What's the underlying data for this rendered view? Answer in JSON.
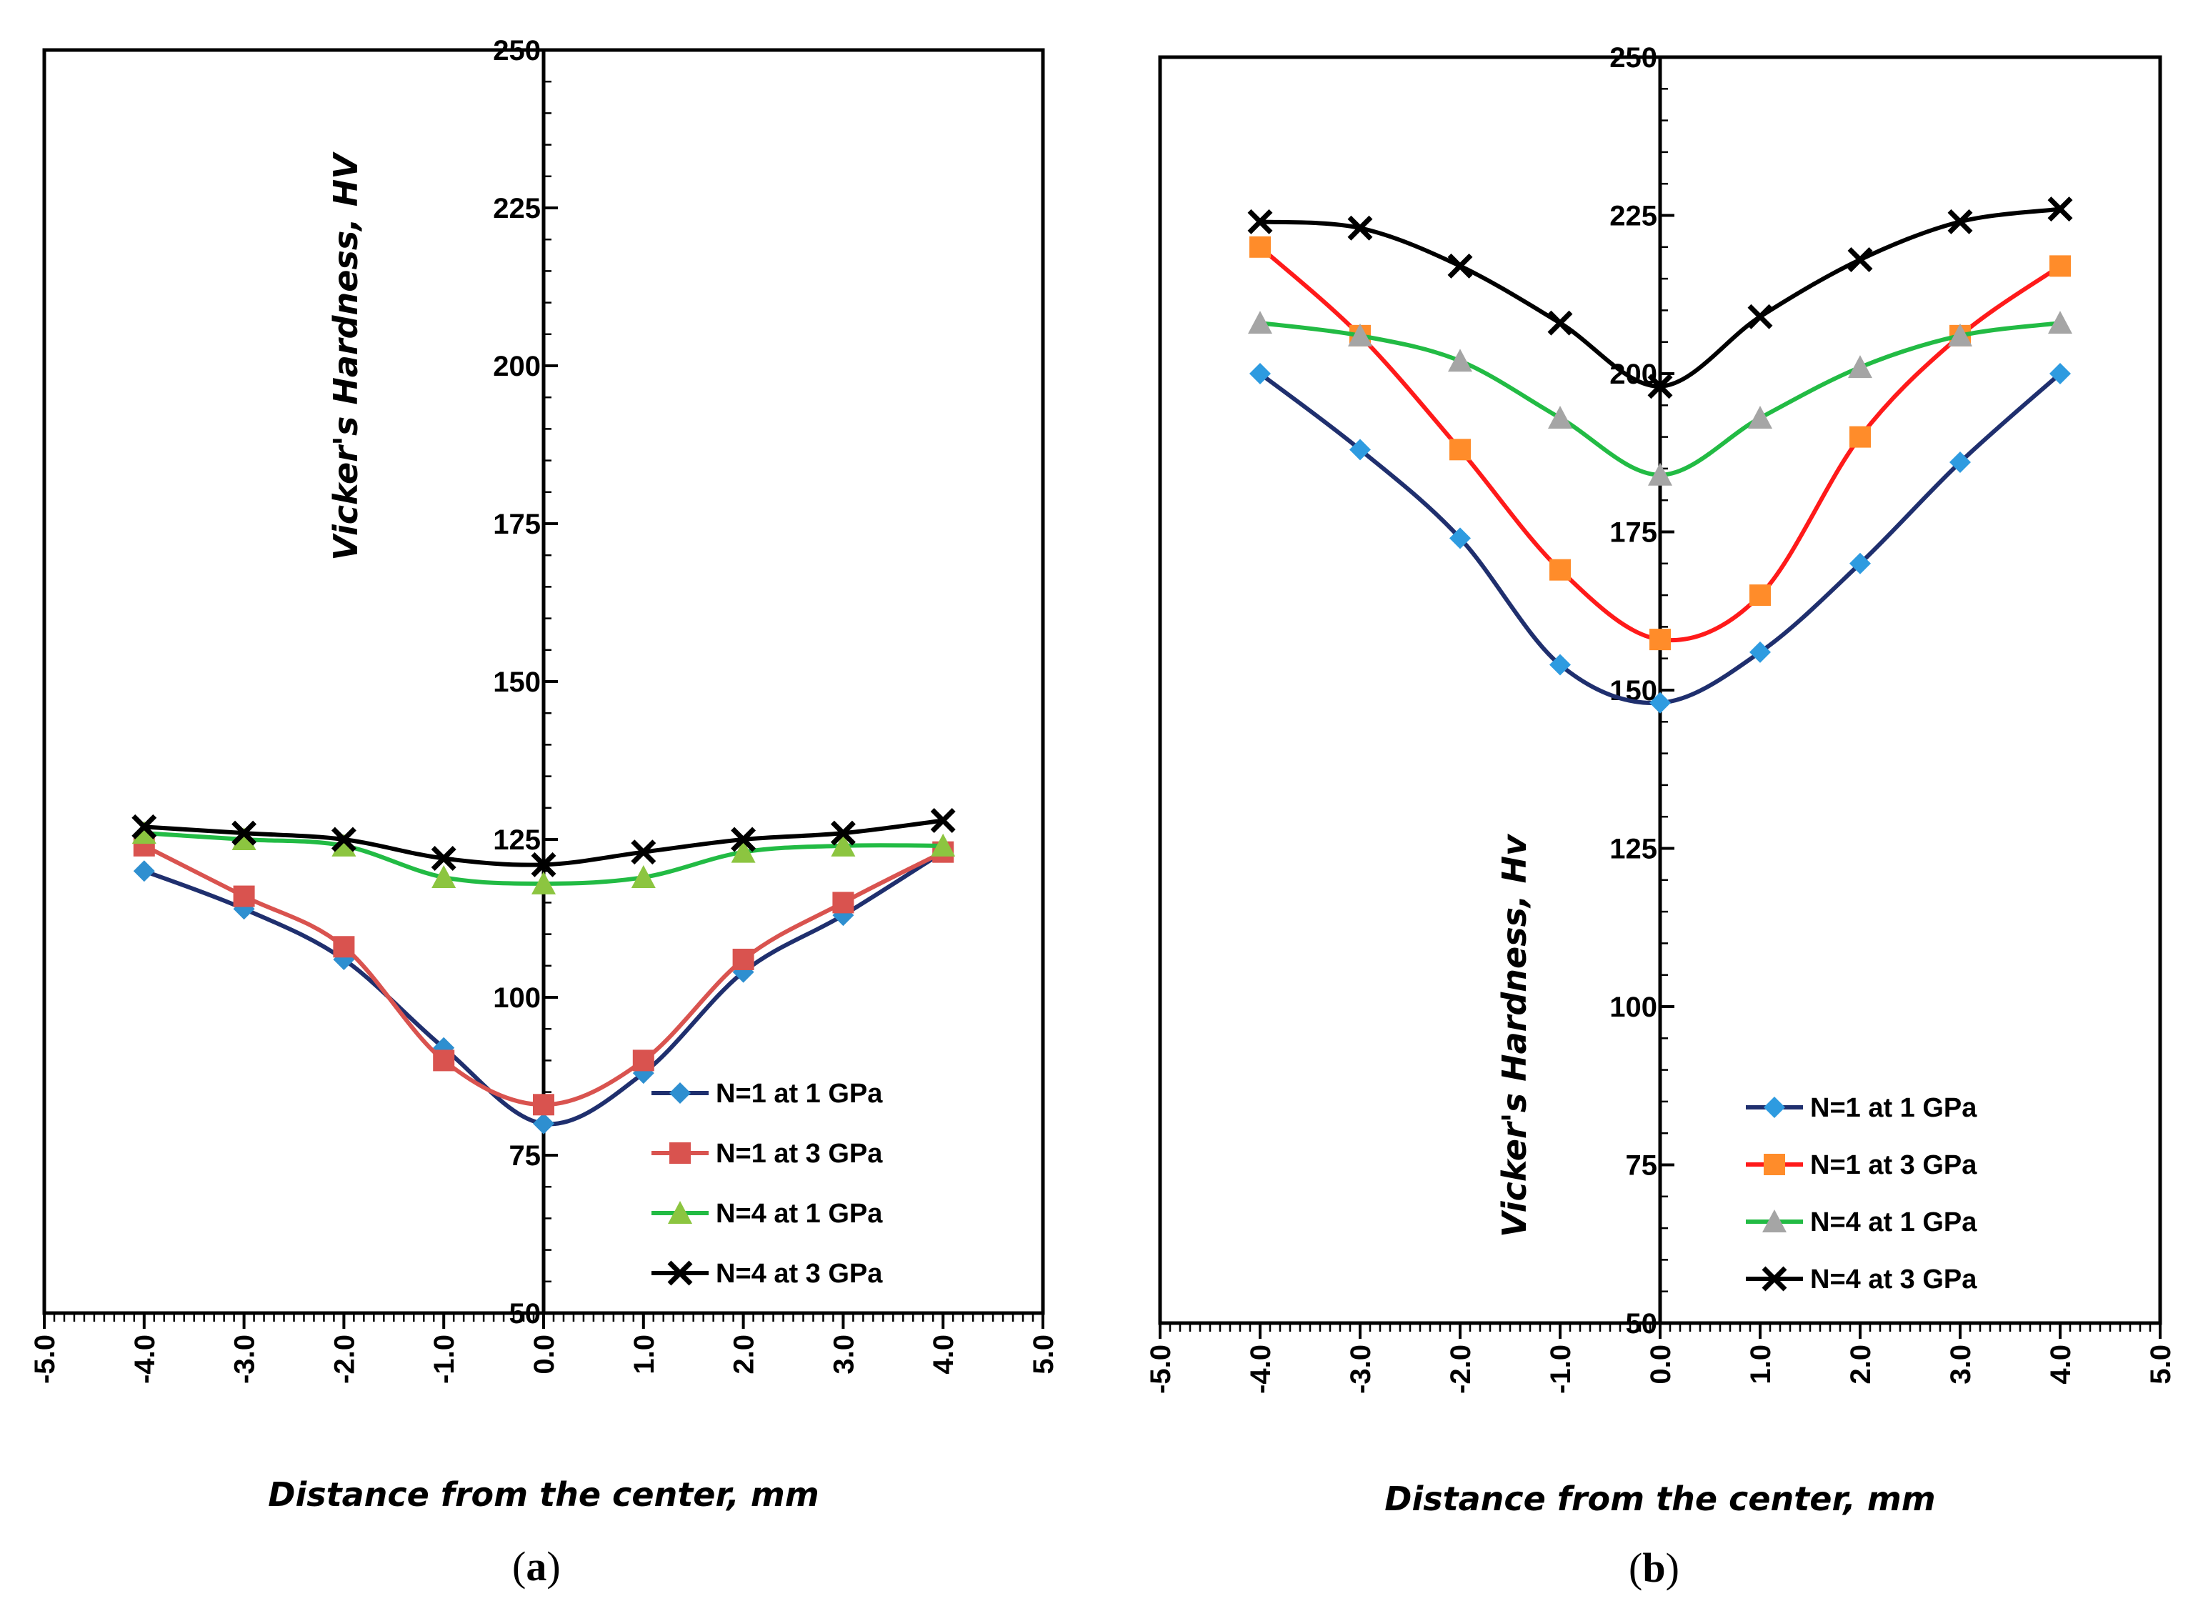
{
  "chart_data": [
    {
      "type": "line",
      "panel_label": "a",
      "xlabel": "Distance from the center, mm",
      "ylabel": "Vicker's Hardness, HV",
      "xlim": [
        -5.0,
        5.0
      ],
      "ylim": [
        50,
        250
      ],
      "x_ticks": [
        "-5.0",
        "-4.0",
        "-3.0",
        "-2.0",
        "-1.0",
        "0.0",
        "1.0",
        "2.0",
        "3.0",
        "4.0",
        "5.0"
      ],
      "y_ticks": [
        "50",
        "75",
        "100",
        "125",
        "150",
        "175",
        "200",
        "225",
        "250"
      ],
      "legend_position": "bottom-right",
      "x": [
        -4,
        -3,
        -2,
        -1,
        0,
        1,
        2,
        3,
        4
      ],
      "series": [
        {
          "name": "N=1 at 1 GPa",
          "color": "#1f2f6e",
          "marker": "diamond",
          "marker_color": "#2e8fd0",
          "values": [
            120,
            114,
            106,
            92,
            80,
            88,
            104,
            113,
            123
          ]
        },
        {
          "name": "N=1 at 3 GPa",
          "color": "#d9534f",
          "marker": "square",
          "marker_color": "#d9534f",
          "values": [
            124,
            116,
            108,
            90,
            83,
            90,
            106,
            115,
            123
          ]
        },
        {
          "name": "N=4 at 1 GPa",
          "color": "#22bb44",
          "marker": "triangle",
          "marker_color": "#8cc540",
          "values": [
            126,
            125,
            124,
            119,
            118,
            119,
            123,
            124,
            124
          ]
        },
        {
          "name": "N=4 at 3 GPa",
          "color": "#000000",
          "marker": "x",
          "marker_color": "#000000",
          "values": [
            127,
            126,
            125,
            122,
            121,
            123,
            125,
            126,
            128
          ]
        }
      ]
    },
    {
      "type": "line",
      "panel_label": "b",
      "xlabel": "Distance from the center, mm",
      "ylabel": "Vicker's Hardness, Hv",
      "xlim": [
        -5.0,
        5.0
      ],
      "ylim": [
        50,
        250
      ],
      "x_ticks": [
        "-5.0",
        "-4.0",
        "-3.0",
        "-2.0",
        "-1.0",
        "0.0",
        "1.0",
        "2.0",
        "3.0",
        "4.0",
        "5.0"
      ],
      "y_ticks": [
        "50",
        "75",
        "100",
        "125",
        "150",
        "175",
        "200",
        "225",
        "250"
      ],
      "legend_position": "bottom-right",
      "x": [
        -4,
        -3,
        -2,
        -1,
        0,
        1,
        2,
        3,
        4
      ],
      "series": [
        {
          "name": "N=1 at 1 GPa",
          "color": "#1f2f6e",
          "marker": "diamond",
          "marker_color": "#2e9be0",
          "values": [
            200,
            188,
            174,
            154,
            148,
            156,
            170,
            186,
            200
          ]
        },
        {
          "name": "N=1 at 3 GPa",
          "color": "#ff1a1a",
          "marker": "square",
          "marker_color": "#ff8c2a",
          "values": [
            220,
            206,
            188,
            169,
            158,
            165,
            190,
            206,
            217
          ]
        },
        {
          "name": "N=4 at 1 GPa",
          "color": "#22bb44",
          "marker": "triangle",
          "marker_color": "#a5a5a5",
          "values": [
            208,
            206,
            202,
            193,
            184,
            193,
            201,
            206,
            208
          ]
        },
        {
          "name": "N=4 at 3 GPa",
          "color": "#000000",
          "marker": "x",
          "marker_color": "#000000",
          "values": [
            224,
            223,
            217,
            208,
            198,
            209,
            218,
            224,
            226
          ]
        }
      ]
    }
  ]
}
